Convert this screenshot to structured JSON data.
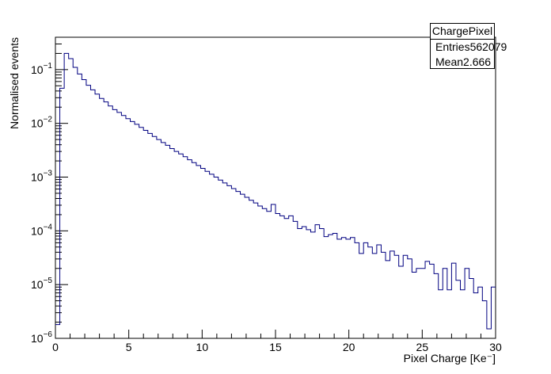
{
  "stats": {
    "title": "ChargePixel",
    "entries_label": "Entries",
    "entries_value": "562079",
    "mean_label": "Mean",
    "mean_value": "2.666"
  },
  "chart_data": {
    "type": "histogram",
    "xlabel": "Pixel Charge [Ke⁻]",
    "ylabel": "Normalised events",
    "xlim": [
      0,
      30
    ],
    "ylim": [
      1e-06,
      0.4
    ],
    "y_log": true,
    "grid": false,
    "line_color": "#000080",
    "x_ticks": [
      {
        "value": 0,
        "label": "0"
      },
      {
        "value": 5,
        "label": "5"
      },
      {
        "value": 10,
        "label": "10"
      },
      {
        "value": 15,
        "label": "15"
      },
      {
        "value": 20,
        "label": "20"
      },
      {
        "value": 25,
        "label": "25"
      },
      {
        "value": 30,
        "label": "30"
      }
    ],
    "y_ticks": [
      {
        "value": 1e-06,
        "base": "10",
        "exp": "−6"
      },
      {
        "value": 1e-05,
        "base": "10",
        "exp": "−5"
      },
      {
        "value": 0.0001,
        "base": "10",
        "exp": "−4"
      },
      {
        "value": 0.001,
        "base": "10",
        "exp": "−3"
      },
      {
        "value": 0.01,
        "base": "10",
        "exp": "−2"
      },
      {
        "value": 0.1,
        "base": "10",
        "exp": "−1"
      }
    ],
    "bin_width": 0.3,
    "bin_start": 0,
    "values": [
      1.8e-06,
      0.045,
      0.2,
      0.16,
      0.11,
      0.083,
      0.065,
      0.051,
      0.042,
      0.035,
      0.029,
      0.025,
      0.021,
      0.018,
      0.016,
      0.014,
      0.0122,
      0.0108,
      0.0096,
      0.0084,
      0.0074,
      0.0065,
      0.0057,
      0.005,
      0.0044,
      0.0039,
      0.0034,
      0.003,
      0.0027,
      0.0024,
      0.0021,
      0.00186,
      0.00164,
      0.00145,
      0.00128,
      0.00113,
      0.001,
      0.00088,
      0.00078,
      0.00069,
      0.00061,
      0.00054,
      0.00048,
      0.00042,
      0.00037,
      0.00033,
      0.00029,
      0.00026,
      0.00023,
      0.00031,
      0.00021,
      0.00019,
      0.00017,
      0.00019,
      0.00015,
      0.00011,
      0.00012,
      0.000105,
      9.5e-05,
      0.00013,
      0.00011,
      7.8e-05,
      8.5e-05,
      9e-05,
      7e-05,
      7.5e-05,
      7e-05,
      7.5e-05,
      6e-05,
      3.8e-05,
      6e-05,
      5e-05,
      3.8e-05,
      5.5e-05,
      4e-05,
      2.8e-05,
      4.2e-05,
      3.5e-05,
      2.2e-05,
      3.5e-05,
      3e-05,
      1.7e-05,
      2e-05,
      2e-05,
      2.7e-05,
      2.4e-05,
      1.6e-05,
      8e-06,
      2e-05,
      8e-06,
      2.5e-05,
      1.2e-05,
      8e-06,
      2e-05,
      1.3e-05,
      7e-06,
      9e-06,
      5e-06,
      1.5e-06,
      9e-06
    ]
  }
}
